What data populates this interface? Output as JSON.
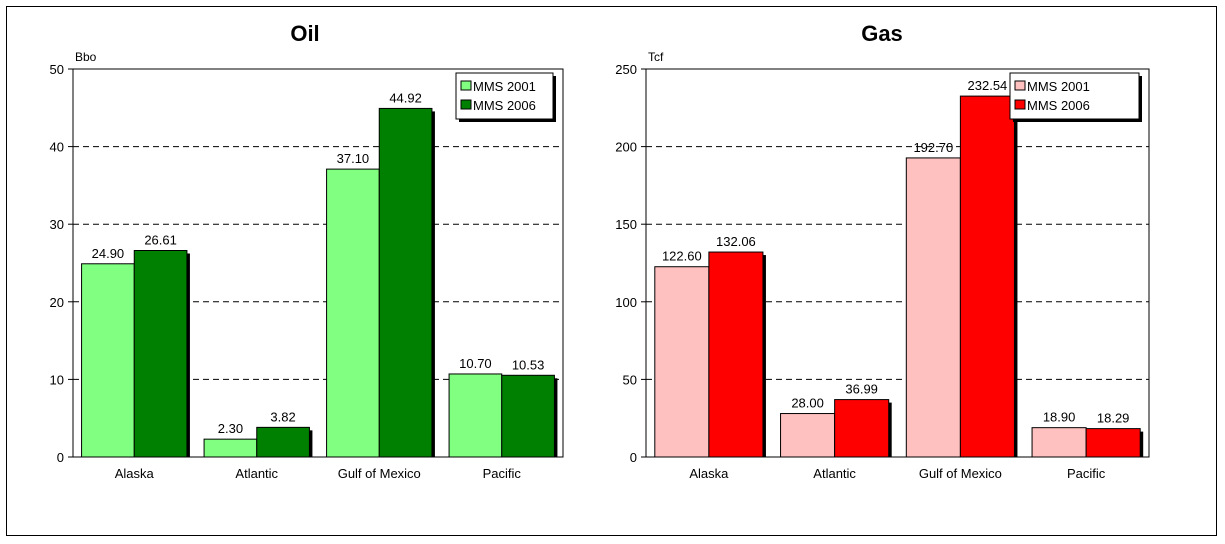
{
  "chart_data": [
    {
      "type": "bar",
      "title": "Oil",
      "unit_label": "Bbo",
      "categories": [
        "Alaska",
        "Atlantic",
        "Gulf of Mexico",
        "Pacific"
      ],
      "series": [
        {
          "name": "MMS 2001",
          "values": [
            24.9,
            2.3,
            37.1,
            10.7
          ],
          "color": "#80ff80"
        },
        {
          "name": "MMS 2006",
          "values": [
            26.61,
            3.82,
            44.92,
            10.53
          ],
          "color": "#008000"
        }
      ],
      "value_labels": [
        [
          "24.90",
          "2.30",
          "37.10",
          "10.70"
        ],
        [
          "26.61",
          "3.82",
          "44.92",
          "10.53"
        ]
      ],
      "ylim": [
        0,
        50
      ],
      "yticks": [
        "0",
        "10",
        "20",
        "30",
        "40",
        "50"
      ],
      "grid": "dashed horizontal",
      "legend_position": "top-right"
    },
    {
      "type": "bar",
      "title": "Gas",
      "unit_label": "Tcf",
      "categories": [
        "Alaska",
        "Atlantic",
        "Gulf of Mexico",
        "Pacific"
      ],
      "series": [
        {
          "name": "MMS 2001",
          "values": [
            122.6,
            28.0,
            192.7,
            18.9
          ],
          "color": "#ffc0c0"
        },
        {
          "name": "MMS 2006",
          "values": [
            132.06,
            36.99,
            232.54,
            18.29
          ],
          "color": "#ff0000"
        }
      ],
      "value_labels": [
        [
          "122.60",
          "28.00",
          "192.70",
          "18.90"
        ],
        [
          "132.06",
          "36.99",
          "232.54",
          "18.29"
        ]
      ],
      "ylim": [
        0,
        250
      ],
      "yticks": [
        "0",
        "50",
        "100",
        "150",
        "200",
        "250"
      ],
      "grid": "dashed horizontal",
      "legend_position": "top-right"
    }
  ]
}
